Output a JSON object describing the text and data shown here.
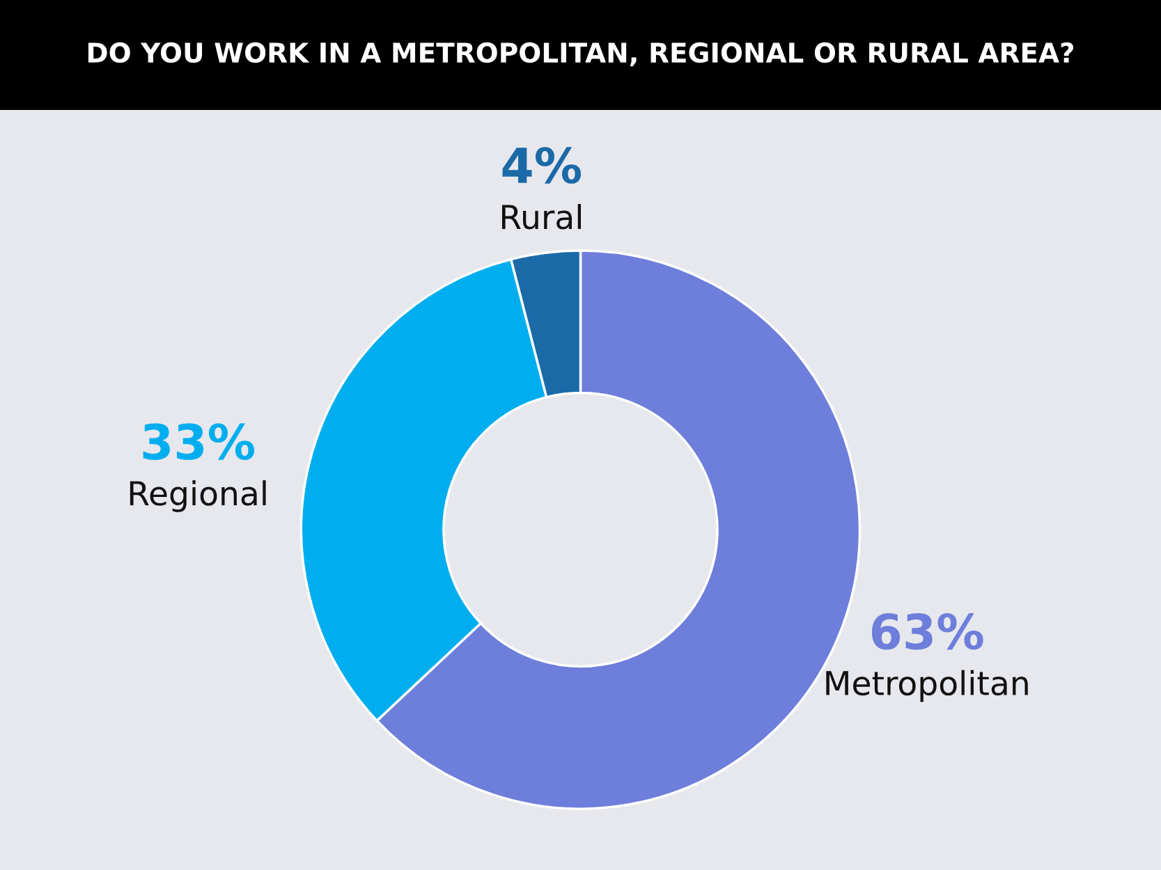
{
  "chart_data": {
    "type": "donut",
    "title": "DO YOU WORK IN A METROPOLITAN, REGIONAL OR RURAL AREA?",
    "categories": [
      "Metropolitan",
      "Regional",
      "Rural"
    ],
    "values": [
      63,
      33,
      4
    ],
    "colors": [
      "#6d7edb",
      "#00aeef",
      "#1b6aa8"
    ],
    "value_labels": [
      "63%",
      "33%",
      "4%"
    ]
  }
}
